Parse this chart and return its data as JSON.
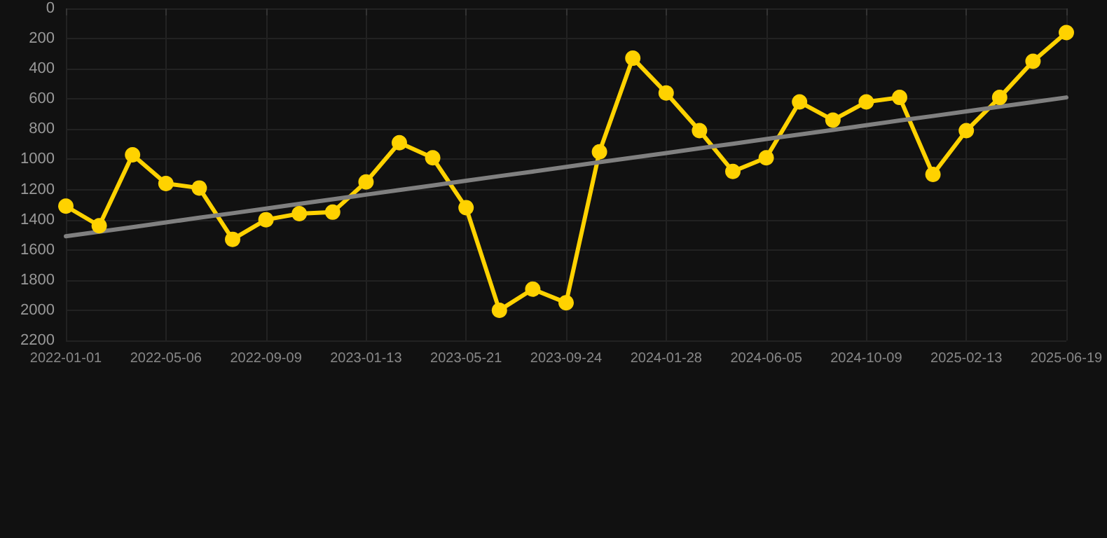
{
  "chart_data": {
    "type": "line",
    "categories": [
      "2022-01-01",
      null,
      null,
      "2022-05-06",
      null,
      null,
      "2022-09-09",
      null,
      null,
      "2023-01-13",
      null,
      null,
      "2023-05-21",
      null,
      null,
      "2023-09-24",
      null,
      null,
      "2024-01-28",
      null,
      null,
      "2024-06-05",
      null,
      null,
      "2024-10-09",
      null,
      null,
      "2025-02-13",
      null,
      null,
      "2025-06-19"
    ],
    "series": [
      {
        "color": "#ffd200",
        "values": [
          1310,
          1440,
          970,
          1160,
          1190,
          1530,
          1400,
          1360,
          1350,
          1150,
          890,
          990,
          1320,
          2000,
          1860,
          1950,
          950,
          330,
          560,
          810,
          1080,
          990,
          620,
          740,
          620,
          590,
          1100,
          810,
          590,
          350,
          160
        ],
        "marker": "circle"
      },
      {
        "type": "line",
        "color": "#808080",
        "values": [
          1510,
          1479,
          1449,
          1418,
          1387,
          1357,
          1326,
          1295,
          1265,
          1234,
          1203,
          1173,
          1142,
          1111,
          1081,
          1050,
          1019,
          989,
          958,
          927,
          897,
          866,
          835,
          805,
          774,
          743,
          713,
          682,
          651,
          621,
          590
        ],
        "marker": "none"
      }
    ],
    "ylim": [
      2200,
      0
    ],
    "yticks": [
      0,
      200,
      400,
      600,
      800,
      1000,
      1200,
      1400,
      1600,
      1800,
      2000,
      2200
    ],
    "grid": true,
    "line_style": "solid"
  }
}
